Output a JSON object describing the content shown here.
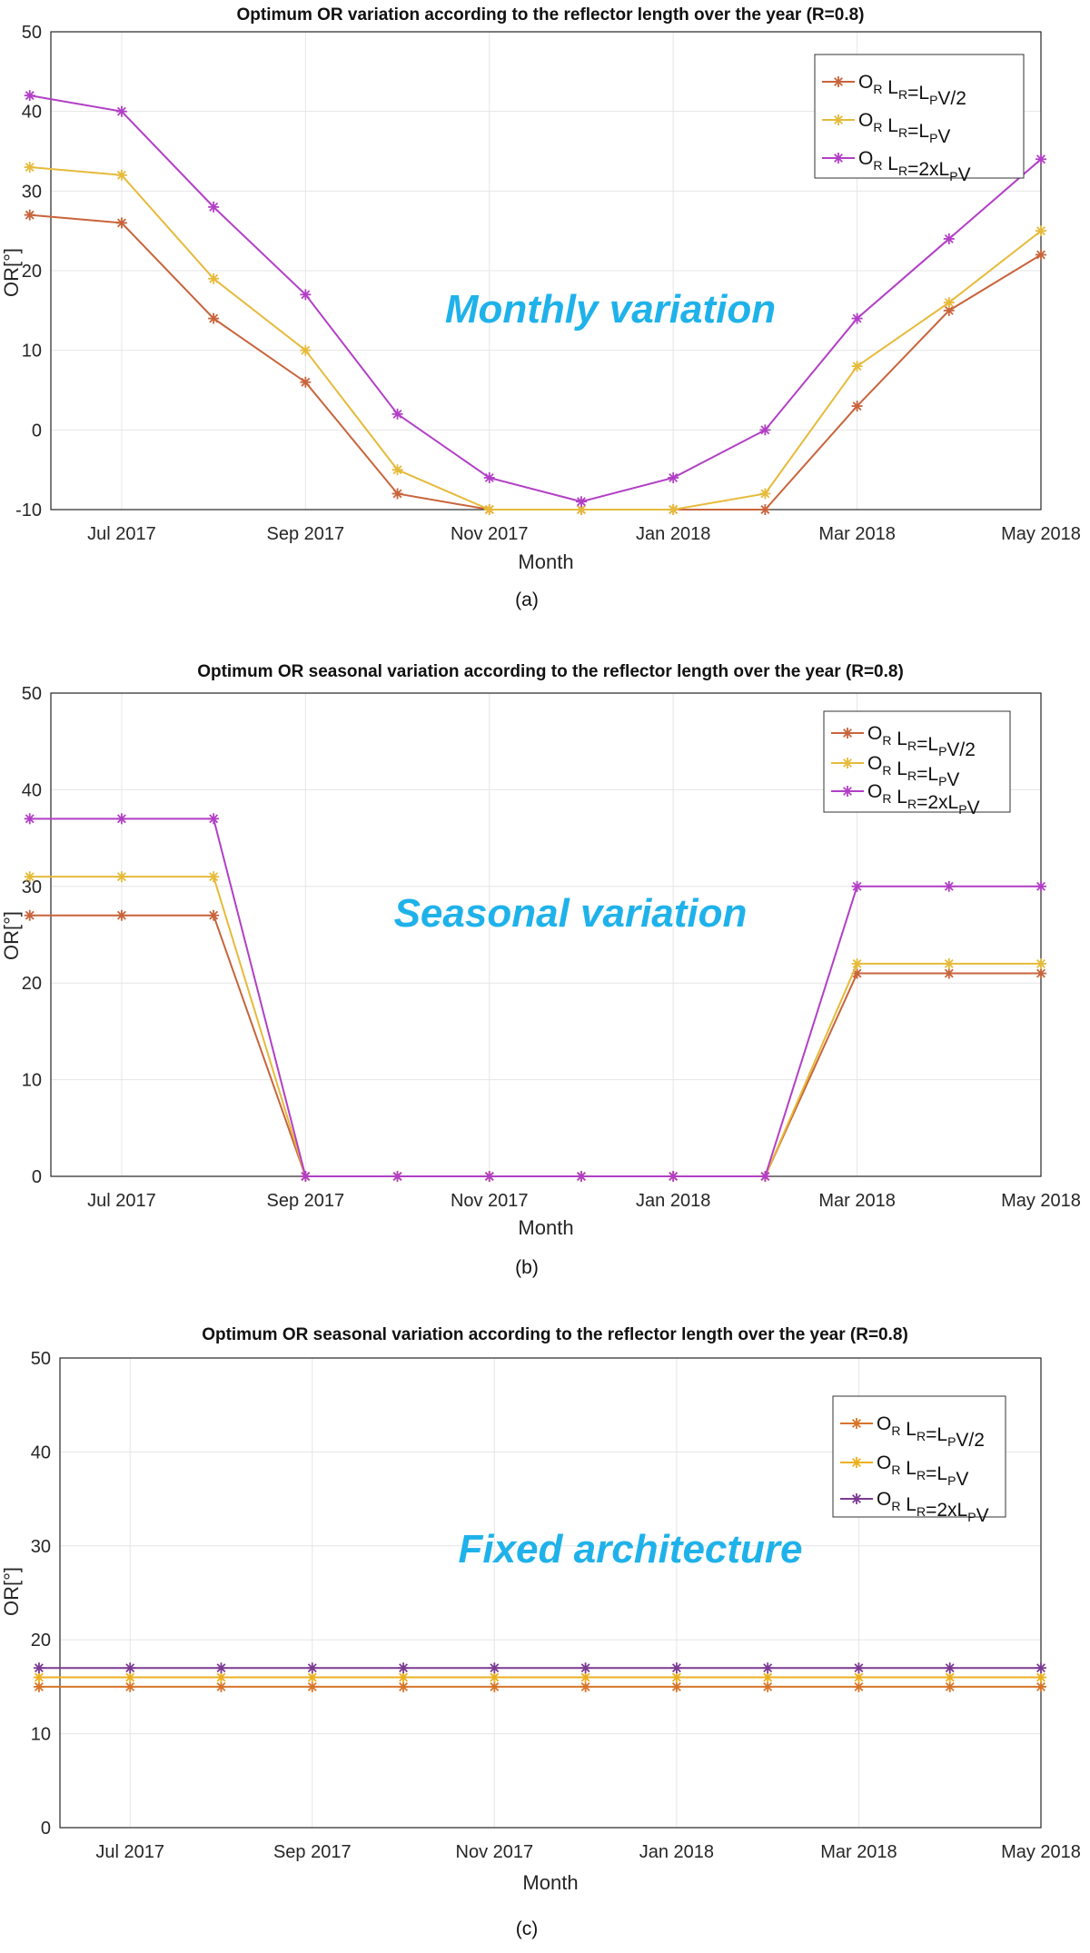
{
  "colors": {
    "series": [
      "#c8643c",
      "#e6ba3a",
      "#b23fc6"
    ],
    "series_c": [
      "#d8742a",
      "#ecb020",
      "#7a3a92"
    ],
    "annotation": "#1fb2ea",
    "grid": "#e6e6e6",
    "axis": "#262626"
  },
  "legend_labels": [
    {
      "o": "O",
      "o_sub": "R",
      "l": " L",
      "l_sub": "R",
      "eq": "=L",
      "eq_sub": "P",
      "tail": "V/2"
    },
    {
      "o": "O",
      "o_sub": "R",
      "l": " L",
      "l_sub": "R",
      "eq": "=L",
      "eq_sub": "P",
      "tail": "V"
    },
    {
      "o": "O",
      "o_sub": "R",
      "l": " L",
      "l_sub": "R",
      "eq": "=2xL",
      "eq_sub": "P",
      "tail": "V"
    }
  ],
  "chart_data": [
    {
      "type": "line",
      "panel_label": "(a)",
      "title": "Optimum OR variation according to the reflector length over the year (R=0.8)",
      "xlabel": "Month",
      "ylabel": "OR[°]",
      "annotation": "Monthly variation",
      "x": [
        "2017-06",
        "2017-07",
        "2017-08",
        "2017-09",
        "2017-10",
        "2017-11",
        "2017-12",
        "2018-01",
        "2018-02",
        "2018-03",
        "2018-04",
        "2018-05"
      ],
      "xticks": [
        "Jul 2017",
        "Sep 2017",
        "Nov 2017",
        "Jan 2018",
        "Mar 2018",
        "May 2018"
      ],
      "yticks": [
        -10,
        0,
        10,
        20,
        30,
        40,
        50
      ],
      "ylim": [
        -10,
        50
      ],
      "grid": true,
      "legend_position": "top-right",
      "series": [
        {
          "values": [
            27,
            26,
            14,
            6,
            -8,
            -10,
            -10,
            -10,
            -10,
            3,
            15,
            22
          ]
        },
        {
          "values": [
            33,
            32,
            19,
            10,
            -5,
            -10,
            -10,
            -10,
            -8,
            8,
            16,
            25
          ]
        },
        {
          "values": [
            42,
            40,
            28,
            17,
            2,
            -6,
            -9,
            -6,
            0,
            14,
            24,
            34
          ]
        }
      ]
    },
    {
      "type": "line",
      "panel_label": "(b)",
      "title": "Optimum OR seasonal variation according to the reflector length over the year (R=0.8)",
      "xlabel": "Month",
      "ylabel": "OR[°]",
      "annotation": "Seasonal variation",
      "x": [
        "2017-06",
        "2017-07",
        "2017-08",
        "2017-09",
        "2017-10",
        "2017-11",
        "2017-12",
        "2018-01",
        "2018-02",
        "2018-03",
        "2018-04",
        "2018-05"
      ],
      "xticks": [
        "Jul 2017",
        "Sep 2017",
        "Nov 2017",
        "Jan 2018",
        "Mar 2018",
        "May 2018"
      ],
      "yticks": [
        0,
        10,
        20,
        30,
        40,
        50
      ],
      "ylim": [
        0,
        50
      ],
      "grid": true,
      "legend_position": "top-right",
      "series": [
        {
          "values": [
            27,
            27,
            27,
            0,
            0,
            0,
            0,
            0,
            0,
            21,
            21,
            21
          ]
        },
        {
          "values": [
            31,
            31,
            31,
            0,
            0,
            0,
            0,
            0,
            0,
            22,
            22,
            22
          ]
        },
        {
          "values": [
            37,
            37,
            37,
            0,
            0,
            0,
            0,
            0,
            0,
            30,
            30,
            30
          ]
        }
      ]
    },
    {
      "type": "line",
      "panel_label": "(c)",
      "title": "Optimum OR seasonal variation according to the reflector length over the year (R=0.8)",
      "xlabel": "Month",
      "ylabel": "OR[°]",
      "annotation": "Fixed architecture",
      "x": [
        "2017-06",
        "2017-07",
        "2017-08",
        "2017-09",
        "2017-10",
        "2017-11",
        "2017-12",
        "2018-01",
        "2018-02",
        "2018-03",
        "2018-04",
        "2018-05"
      ],
      "xticks": [
        "Jul 2017",
        "Sep 2017",
        "Nov 2017",
        "Jan 2018",
        "Mar 2018",
        "May 2018"
      ],
      "yticks": [
        0,
        10,
        20,
        30,
        40,
        50
      ],
      "ylim": [
        0,
        50
      ],
      "grid": true,
      "legend_position": "top-right",
      "series": [
        {
          "values": [
            15,
            15,
            15,
            15,
            15,
            15,
            15,
            15,
            15,
            15,
            15,
            15
          ]
        },
        {
          "values": [
            16,
            16,
            16,
            16,
            16,
            16,
            16,
            16,
            16,
            16,
            16,
            16
          ]
        },
        {
          "values": [
            17,
            17,
            17,
            17,
            17,
            17,
            17,
            17,
            17,
            17,
            17,
            17
          ]
        }
      ]
    }
  ]
}
